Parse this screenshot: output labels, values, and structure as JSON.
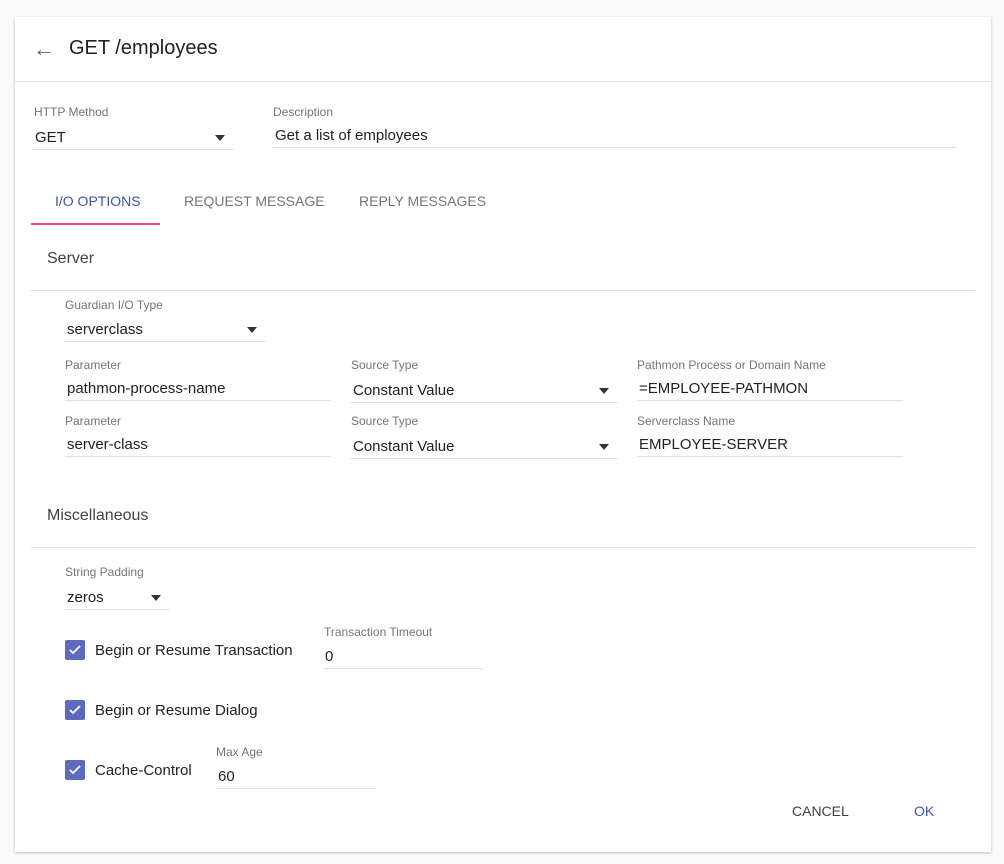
{
  "header": {
    "title": "GET /employees",
    "back_icon": "arrow-left-icon"
  },
  "http_method": {
    "label": "HTTP Method",
    "value": "GET"
  },
  "description": {
    "label": "Description",
    "value": "Get a list of employees"
  },
  "tabs": [
    {
      "label": "I/O OPTIONS",
      "active": true
    },
    {
      "label": "REQUEST MESSAGE"
    },
    {
      "label": "REPLY MESSAGES"
    }
  ],
  "accent_color": "#3f51b5",
  "tab_ink_color": "#ff4081",
  "checkbox_color": "#5c6bc0",
  "server": {
    "title": "Server",
    "io_type": {
      "label": "Guardian I/O Type",
      "value": "serverclass"
    },
    "rows": [
      {
        "param_label": "Parameter",
        "param": "pathmon-process-name",
        "source_label": "Source Type",
        "source": "Constant Value",
        "value_label": "Pathmon Process or Domain Name",
        "value": "=EMPLOYEE-PATHMON"
      },
      {
        "param_label": "Parameter",
        "param": "server-class",
        "source_label": "Source Type",
        "source": "Constant Value",
        "value_label": "Serverclass Name",
        "value": "EMPLOYEE-SERVER"
      }
    ]
  },
  "misc": {
    "title": "Miscellaneous",
    "padding": {
      "label": "String Padding",
      "value": "zeros"
    },
    "transaction": {
      "label": "Begin or Resume Transaction",
      "checked": true,
      "timeout_label": "Transaction Timeout",
      "timeout": "0"
    },
    "dialog": {
      "label": "Begin or Resume Dialog",
      "checked": true
    },
    "cache": {
      "label": "Cache-Control",
      "checked": true,
      "max_age_label": "Max Age",
      "max_age": "60"
    }
  },
  "actions": {
    "cancel": "CANCEL",
    "ok": "OK"
  }
}
